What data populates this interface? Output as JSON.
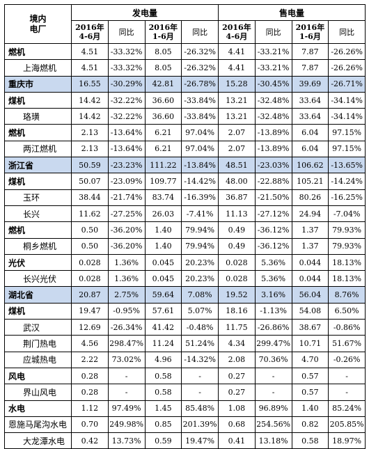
{
  "header": {
    "corner": "境内\n电厂",
    "group_generation": "发电量",
    "group_sales": "售电量",
    "period_q2": "2016年\n4-6月",
    "period_h1": "2016年\n1-6月",
    "yoy": "同比"
  },
  "rows": [
    {
      "type": "category",
      "name": "燃机",
      "v": [
        "4.51",
        "-33.32%",
        "8.05",
        "-26.32%",
        "4.41",
        "-33.21%",
        "7.87",
        "-26.26%"
      ]
    },
    {
      "type": "sub",
      "name": "上海燃机",
      "v": [
        "4.51",
        "-33.32%",
        "8.05",
        "-26.32%",
        "4.41",
        "-33.21%",
        "7.87",
        "-26.26%"
      ]
    },
    {
      "type": "province",
      "name": "重庆市",
      "v": [
        "16.55",
        "-30.29%",
        "42.81",
        "-26.78%",
        "15.28",
        "-30.45%",
        "39.69",
        "-26.71%"
      ]
    },
    {
      "type": "category",
      "name": "煤机",
      "v": [
        "14.42",
        "-32.22%",
        "36.60",
        "-33.84%",
        "13.21",
        "-32.48%",
        "33.64",
        "-34.14%"
      ]
    },
    {
      "type": "sub",
      "name": "珞璜",
      "v": [
        "14.42",
        "-32.22%",
        "36.60",
        "-33.84%",
        "13.21",
        "-32.48%",
        "33.64",
        "-34.14%"
      ]
    },
    {
      "type": "category",
      "name": "燃机",
      "v": [
        "2.13",
        "-13.64%",
        "6.21",
        "97.04%",
        "2.07",
        "-13.89%",
        "6.04",
        "97.15%"
      ]
    },
    {
      "type": "sub",
      "name": "两江燃机",
      "v": [
        "2.13",
        "-13.64%",
        "6.21",
        "97.04%",
        "2.07",
        "-13.89%",
        "6.04",
        "97.15%"
      ]
    },
    {
      "type": "province",
      "name": "浙江省",
      "v": [
        "50.59",
        "-23.23%",
        "111.22",
        "-13.84%",
        "48.51",
        "-23.03%",
        "106.62",
        "-13.65%"
      ]
    },
    {
      "type": "category",
      "name": "煤机",
      "v": [
        "50.07",
        "-23.09%",
        "109.77",
        "-14.42%",
        "48.00",
        "-22.88%",
        "105.21",
        "-14.24%"
      ]
    },
    {
      "type": "sub",
      "name": "玉环",
      "v": [
        "38.44",
        "-21.74%",
        "83.74",
        "-16.39%",
        "36.87",
        "-21.50%",
        "80.26",
        "-16.25%"
      ]
    },
    {
      "type": "sub",
      "name": "长兴",
      "v": [
        "11.62",
        "-27.25%",
        "26.03",
        "-7.41%",
        "11.13",
        "-27.12%",
        "24.94",
        "-7.04%"
      ]
    },
    {
      "type": "category",
      "name": "燃机",
      "v": [
        "0.50",
        "-36.20%",
        "1.40",
        "79.94%",
        "0.49",
        "-36.12%",
        "1.37",
        "79.93%"
      ]
    },
    {
      "type": "sub",
      "name": "桐乡燃机",
      "v": [
        "0.50",
        "-36.20%",
        "1.40",
        "79.94%",
        "0.49",
        "-36.12%",
        "1.37",
        "79.93%"
      ]
    },
    {
      "type": "category",
      "name": "光伏",
      "v": [
        "0.028",
        "1.36%",
        "0.045",
        "20.23%",
        "0.028",
        "5.36%",
        "0.044",
        "18.13%"
      ]
    },
    {
      "type": "sub",
      "name": "长兴光伏",
      "v": [
        "0.028",
        "1.36%",
        "0.045",
        "20.23%",
        "0.028",
        "5.36%",
        "0.044",
        "18.13%"
      ]
    },
    {
      "type": "province",
      "name": "湖北省",
      "v": [
        "20.87",
        "2.75%",
        "59.64",
        "7.08%",
        "19.52",
        "3.16%",
        "56.04",
        "8.76%"
      ]
    },
    {
      "type": "category",
      "name": "煤机",
      "v": [
        "19.47",
        "-0.95%",
        "57.61",
        "5.07%",
        "18.16",
        "-1.13%",
        "54.08",
        "6.50%"
      ]
    },
    {
      "type": "sub",
      "name": "武汉",
      "v": [
        "12.69",
        "-26.34%",
        "41.42",
        "-0.48%",
        "11.75",
        "-26.86%",
        "38.67",
        "-0.86%"
      ]
    },
    {
      "type": "sub",
      "name": "荆门热电",
      "v": [
        "4.56",
        "298.47%",
        "11.24",
        "51.24%",
        "4.34",
        "299.47%",
        "10.71",
        "51.67%"
      ]
    },
    {
      "type": "sub",
      "name": "应城热电",
      "v": [
        "2.22",
        "73.02%",
        "4.96",
        "-14.32%",
        "2.08",
        "70.36%",
        "4.70",
        "-0.26%"
      ]
    },
    {
      "type": "category",
      "name": "风电",
      "v": [
        "0.28",
        "-",
        "0.58",
        "-",
        "0.27",
        "-",
        "0.57",
        "-"
      ]
    },
    {
      "type": "sub",
      "name": "界山风电",
      "v": [
        "0.28",
        "-",
        "0.58",
        "-",
        "0.27",
        "-",
        "0.57",
        "-"
      ]
    },
    {
      "type": "category",
      "name": "水电",
      "v": [
        "1.12",
        "97.49%",
        "1.45",
        "85.48%",
        "1.08",
        "96.89%",
        "1.40",
        "85.24%"
      ]
    },
    {
      "type": "hydro",
      "name": "恩施马尾沟水电",
      "v": [
        "0.70",
        "249.98%",
        "0.85",
        "201.39%",
        "0.68",
        "254.56%",
        "0.82",
        "205.85%"
      ]
    },
    {
      "type": "sub",
      "name": "大龙潭水电",
      "v": [
        "0.42",
        "13.73%",
        "0.59",
        "19.47%",
        "0.41",
        "13.18%",
        "0.58",
        "18.97%"
      ]
    }
  ]
}
